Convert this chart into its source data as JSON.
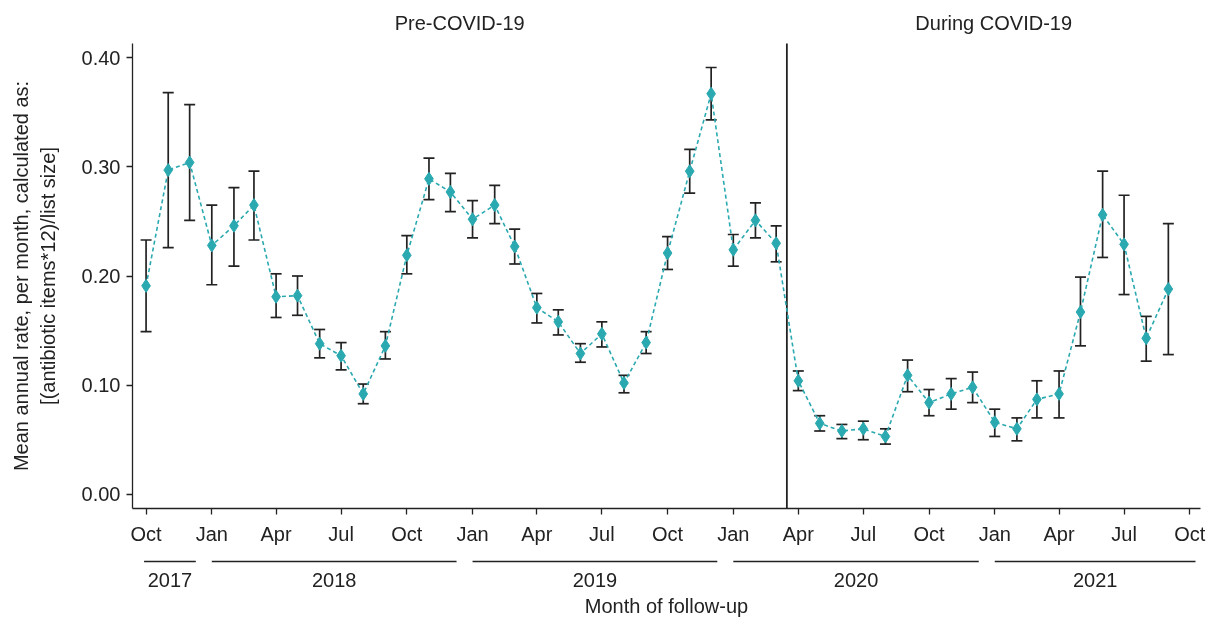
{
  "chart_data": {
    "type": "line",
    "xlabel": "Month of follow-up",
    "ylabel": "Mean annual rate, per month, calculated as:\n[(antibiotic items*12)/list size]",
    "x": [
      "2017-10",
      "2017-11",
      "2017-12",
      "2018-01",
      "2018-02",
      "2018-03",
      "2018-04",
      "2018-05",
      "2018-06",
      "2018-07",
      "2018-08",
      "2018-09",
      "2018-10",
      "2018-11",
      "2018-12",
      "2019-01",
      "2019-02",
      "2019-03",
      "2019-04",
      "2019-05",
      "2019-06",
      "2019-07",
      "2019-08",
      "2019-09",
      "2019-10",
      "2019-11",
      "2019-12",
      "2020-01",
      "2020-02",
      "2020-03",
      "2020-04",
      "2020-05",
      "2020-06",
      "2020-07",
      "2020-08",
      "2020-09",
      "2020-10",
      "2020-11",
      "2020-12",
      "2021-01",
      "2021-02",
      "2021-03",
      "2021-04",
      "2021-05",
      "2021-06",
      "2021-07",
      "2021-08",
      "2021-09"
    ],
    "color": "#2aa9b0",
    "values": [
      0.191,
      0.297,
      0.304,
      0.228,
      0.246,
      0.265,
      0.181,
      0.182,
      0.138,
      0.127,
      0.092,
      0.136,
      0.219,
      0.289,
      0.277,
      0.252,
      0.265,
      0.227,
      0.171,
      0.158,
      0.129,
      0.147,
      0.102,
      0.139,
      0.221,
      0.296,
      0.367,
      0.224,
      0.251,
      0.23,
      0.104,
      0.065,
      0.058,
      0.06,
      0.053,
      0.109,
      0.084,
      0.092,
      0.098,
      0.066,
      0.06,
      0.087,
      0.092,
      0.167,
      0.256,
      0.229,
      0.143,
      0.188
    ],
    "errors": [
      [
        0.149,
        0.233
      ],
      [
        0.226,
        0.368
      ],
      [
        0.251,
        0.357
      ],
      [
        0.192,
        0.265
      ],
      [
        0.209,
        0.281
      ],
      [
        0.233,
        0.296
      ],
      [
        0.162,
        0.202
      ],
      [
        0.164,
        0.2
      ],
      [
        0.125,
        0.151
      ],
      [
        0.114,
        0.139
      ],
      [
        0.083,
        0.101
      ],
      [
        0.124,
        0.149
      ],
      [
        0.202,
        0.237
      ],
      [
        0.27,
        0.308
      ],
      [
        0.259,
        0.294
      ],
      [
        0.235,
        0.269
      ],
      [
        0.248,
        0.283
      ],
      [
        0.211,
        0.243
      ],
      [
        0.157,
        0.184
      ],
      [
        0.146,
        0.169
      ],
      [
        0.121,
        0.138
      ],
      [
        0.135,
        0.158
      ],
      [
        0.093,
        0.109
      ],
      [
        0.129,
        0.149
      ],
      [
        0.206,
        0.236
      ],
      [
        0.276,
        0.316
      ],
      [
        0.343,
        0.391
      ],
      [
        0.209,
        0.238
      ],
      [
        0.235,
        0.267
      ],
      [
        0.213,
        0.246
      ],
      [
        0.095,
        0.113
      ],
      [
        0.058,
        0.072
      ],
      [
        0.051,
        0.064
      ],
      [
        0.05,
        0.067
      ],
      [
        0.046,
        0.06
      ],
      [
        0.094,
        0.123
      ],
      [
        0.072,
        0.096
      ],
      [
        0.078,
        0.106
      ],
      [
        0.084,
        0.112
      ],
      [
        0.053,
        0.078
      ],
      [
        0.049,
        0.07
      ],
      [
        0.07,
        0.104
      ],
      [
        0.07,
        0.113
      ],
      [
        0.136,
        0.199
      ],
      [
        0.217,
        0.296
      ],
      [
        0.183,
        0.274
      ],
      [
        0.122,
        0.163
      ],
      [
        0.128,
        0.248
      ]
    ],
    "xlim": [
      "2017-09-12",
      "2021-10-16"
    ],
    "xticks": [
      {
        "value": "2017-10",
        "label": "Oct"
      },
      {
        "value": "2018-01",
        "label": "Jan"
      },
      {
        "value": "2018-04",
        "label": "Apr"
      },
      {
        "value": "2018-07",
        "label": "Jul"
      },
      {
        "value": "2018-10",
        "label": "Oct"
      },
      {
        "value": "2019-01",
        "label": "Jan"
      },
      {
        "value": "2019-04",
        "label": "Apr"
      },
      {
        "value": "2019-07",
        "label": "Jul"
      },
      {
        "value": "2019-10",
        "label": "Oct"
      },
      {
        "value": "2020-01",
        "label": "Jan"
      },
      {
        "value": "2020-04",
        "label": "Apr"
      },
      {
        "value": "2020-07",
        "label": "Jul"
      },
      {
        "value": "2020-10",
        "label": "Oct"
      },
      {
        "value": "2021-01",
        "label": "Jan"
      },
      {
        "value": "2021-04",
        "label": "Apr"
      },
      {
        "value": "2021-07",
        "label": "Jul"
      },
      {
        "value": "2021-10",
        "label": "Oct"
      }
    ],
    "ylim": [
      -0.013,
      0.413
    ],
    "yticks": [
      {
        "value": 0,
        "label": "0.00"
      },
      {
        "value": 0.1,
        "label": "0.10"
      },
      {
        "value": 0.2,
        "label": "0.20"
      },
      {
        "value": 0.3,
        "label": "0.30"
      },
      {
        "value": 0.4,
        "label": "0.40"
      }
    ],
    "ref_lines": [
      {
        "axis": "x",
        "value": "2020-03-16",
        "color": "#222222"
      }
    ],
    "annotations": [
      "Pre-COVID-19",
      "During COVID-19",
      "2017",
      "2018",
      "2019",
      "2020",
      "2021"
    ],
    "marker": "diamond",
    "line_style": "dashed",
    "grid": false
  }
}
